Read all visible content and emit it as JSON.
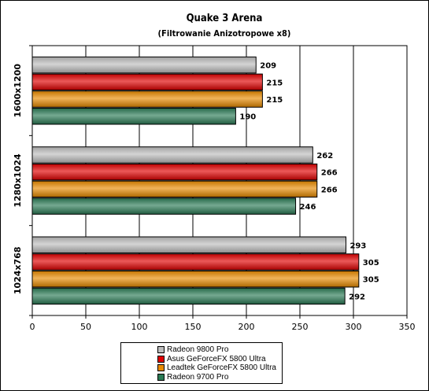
{
  "chart_data": {
    "type": "bar",
    "orientation": "horizontal",
    "title": "Quake 3 Arena",
    "subtitle": "(Filtrowanie Anizotropowe x8)",
    "categories": [
      "1600x1200",
      "1280x1024",
      "1024x768"
    ],
    "series": [
      {
        "name": "Radeon 9800 Pro",
        "color": "#bdbdbd",
        "values": [
          209,
          262,
          293
        ]
      },
      {
        "name": "Asus GeForceFX 5800 Ultra",
        "color": "#e00000",
        "values": [
          215,
          266,
          305
        ]
      },
      {
        "name": "Leadtek GeForceFX 5800 Ultra",
        "color": "#e88a00",
        "values": [
          215,
          266,
          305
        ]
      },
      {
        "name": "Radeon 9700 Pro",
        "color": "#2a7a55",
        "values": [
          190,
          246,
          292
        ]
      }
    ],
    "xlim": [
      0,
      350
    ],
    "xticks": [
      0,
      50,
      100,
      150,
      200,
      250,
      300,
      350
    ],
    "grid": "vertical",
    "legend_position": "bottom"
  }
}
